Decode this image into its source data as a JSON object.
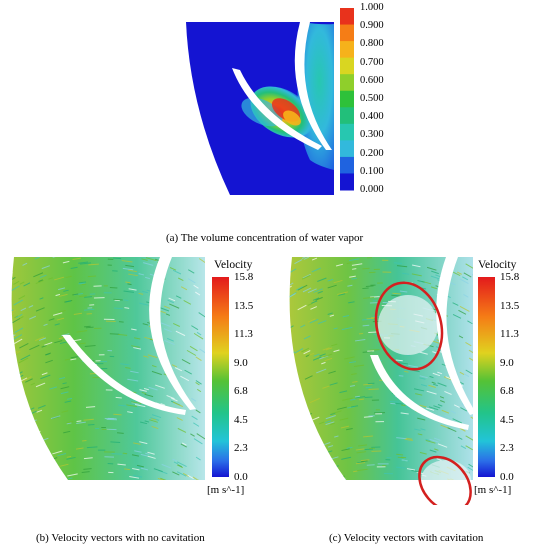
{
  "panel_a": {
    "caption_label": "(a)",
    "caption_text": " The volume concentration of water vapor",
    "colorbar_ticks": [
      "1.000",
      "0.900",
      "0.800",
      "0.700",
      "0.600",
      "0.500",
      "0.400",
      "0.300",
      "0.200",
      "0.100",
      "0.000"
    ],
    "colorbar_colors": [
      "#e8321c",
      "#f57d16",
      "#f6b21b",
      "#d9d621",
      "#8fcf2b",
      "#2ec13a",
      "#22bf7a",
      "#27c7b0",
      "#32b9dc",
      "#1f63e0",
      "#1414d2"
    ]
  },
  "panel_b": {
    "caption_label": "(b)",
    "caption_text": " Velocity vectors with no cavitation",
    "colorbar_title": "Velocity",
    "colorbar_ticks": [
      "15.8",
      "13.5",
      "11.3",
      "9.0",
      "6.8",
      "4.5",
      "2.3",
      "0.0"
    ],
    "unit": "[m s^-1]"
  },
  "panel_c": {
    "caption_label": "(c)",
    "caption_text": " Velocity vectors with cavitation",
    "colorbar_title": "Velocity",
    "colorbar_ticks": [
      "15.8",
      "13.5",
      "11.3",
      "9.0",
      "6.8",
      "4.5",
      "2.3",
      "0.0"
    ],
    "unit": "[m s^-1]"
  }
}
